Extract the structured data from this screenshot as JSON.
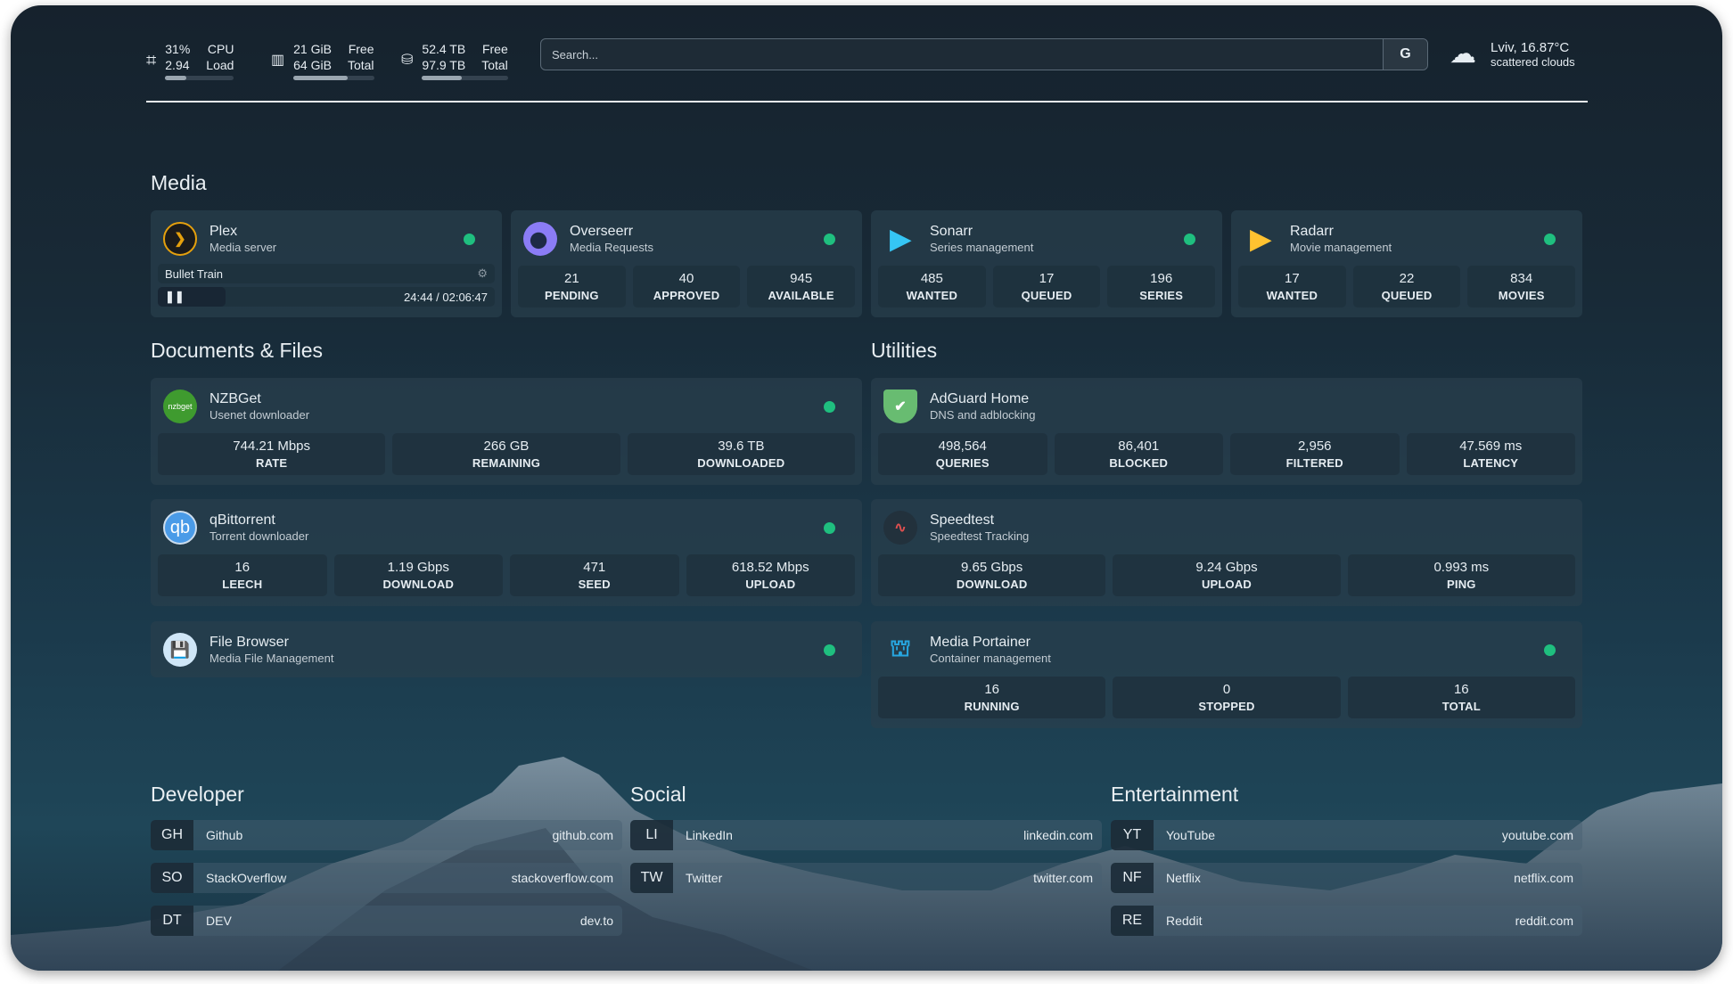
{
  "header": {
    "cpu": {
      "icon": "cpu-icon",
      "value1": "31%",
      "value2": "2.94",
      "label1": "CPU",
      "label2": "Load",
      "percent": 31
    },
    "memory": {
      "icon": "memory-icon",
      "value1": "21 GiB",
      "value2": "64 GiB",
      "label1": "Free",
      "label2": "Total",
      "percent": 67
    },
    "disk": {
      "icon": "disk-icon",
      "value1": "52.4 TB",
      "value2": "97.9 TB",
      "label1": "Free",
      "label2": "Total",
      "percent": 46
    },
    "search": {
      "placeholder": "Search...",
      "button": "G"
    },
    "weather": {
      "icon": "cloud-icon",
      "location_temp": "Lviv, 16.87°C",
      "description": "scattered clouds"
    }
  },
  "sections": {
    "media": "Media",
    "documents": "Documents & Files",
    "utilities": "Utilities",
    "developer": "Developer",
    "social": "Social",
    "entertainment": "Entertainment"
  },
  "media": [
    {
      "name": "Plex",
      "desc": "Media server",
      "status": "online",
      "now_playing": "Bullet Train",
      "time": "24:44 / 02:06:47",
      "progress_percent": 20
    },
    {
      "name": "Overseerr",
      "desc": "Media Requests",
      "status": "online",
      "stats": [
        {
          "v": "21",
          "l": "PENDING"
        },
        {
          "v": "40",
          "l": "APPROVED"
        },
        {
          "v": "945",
          "l": "AVAILABLE"
        }
      ]
    },
    {
      "name": "Sonarr",
      "desc": "Series management",
      "status": "online",
      "stats": [
        {
          "v": "485",
          "l": "WANTED"
        },
        {
          "v": "17",
          "l": "QUEUED"
        },
        {
          "v": "196",
          "l": "SERIES"
        }
      ]
    },
    {
      "name": "Radarr",
      "desc": "Movie management",
      "status": "online",
      "stats": [
        {
          "v": "17",
          "l": "WANTED"
        },
        {
          "v": "22",
          "l": "QUEUED"
        },
        {
          "v": "834",
          "l": "MOVIES"
        }
      ]
    }
  ],
  "documents": [
    {
      "name": "NZBGet",
      "desc": "Usenet downloader",
      "icon_text": "nzbget",
      "status": "online",
      "stats": [
        {
          "v": "744.21 Mbps",
          "l": "RATE"
        },
        {
          "v": "266 GB",
          "l": "REMAINING"
        },
        {
          "v": "39.6 TB",
          "l": "DOWNLOADED"
        }
      ]
    },
    {
      "name": "qBittorrent",
      "desc": "Torrent downloader",
      "icon_text": "qb",
      "status": "online",
      "stats": [
        {
          "v": "16",
          "l": "LEECH"
        },
        {
          "v": "1.19 Gbps",
          "l": "DOWNLOAD"
        },
        {
          "v": "471",
          "l": "SEED"
        },
        {
          "v": "618.52 Mbps",
          "l": "UPLOAD"
        }
      ]
    },
    {
      "name": "File Browser",
      "desc": "Media File Management",
      "status": "online"
    }
  ],
  "utilities": [
    {
      "name": "AdGuard Home",
      "desc": "DNS and adblocking",
      "stats": [
        {
          "v": "498,564",
          "l": "QUERIES"
        },
        {
          "v": "86,401",
          "l": "BLOCKED"
        },
        {
          "v": "2,956",
          "l": "FILTERED"
        },
        {
          "v": "47.569 ms",
          "l": "LATENCY"
        }
      ]
    },
    {
      "name": "Speedtest",
      "desc": "Speedtest Tracking",
      "stats": [
        {
          "v": "9.65 Gbps",
          "l": "DOWNLOAD"
        },
        {
          "v": "9.24 Gbps",
          "l": "UPLOAD"
        },
        {
          "v": "0.993 ms",
          "l": "PING"
        }
      ]
    },
    {
      "name": "Media Portainer",
      "desc": "Container management",
      "status": "online",
      "stats": [
        {
          "v": "16",
          "l": "RUNNING"
        },
        {
          "v": "0",
          "l": "STOPPED"
        },
        {
          "v": "16",
          "l": "TOTAL"
        }
      ]
    }
  ],
  "developer": [
    {
      "ab": "GH",
      "name": "Github",
      "url": "github.com"
    },
    {
      "ab": "SO",
      "name": "StackOverflow",
      "url": "stackoverflow.com"
    },
    {
      "ab": "DT",
      "name": "DEV",
      "url": "dev.to"
    }
  ],
  "social": [
    {
      "ab": "LI",
      "name": "LinkedIn",
      "url": "linkedin.com"
    },
    {
      "ab": "TW",
      "name": "Twitter",
      "url": "twitter.com"
    }
  ],
  "entertainment": [
    {
      "ab": "YT",
      "name": "YouTube",
      "url": "youtube.com"
    },
    {
      "ab": "NF",
      "name": "Netflix",
      "url": "netflix.com"
    },
    {
      "ab": "RE",
      "name": "Reddit",
      "url": "reddit.com"
    }
  ],
  "colors": {
    "status_online": "#1fbf7f",
    "plex": "#e5a00d",
    "overseerr": "#8b7cf6",
    "sonarr": "#35c5f4",
    "radarr": "#ffc230",
    "adguard": "#68bc71",
    "qbittorrent": "#4a9be8"
  }
}
